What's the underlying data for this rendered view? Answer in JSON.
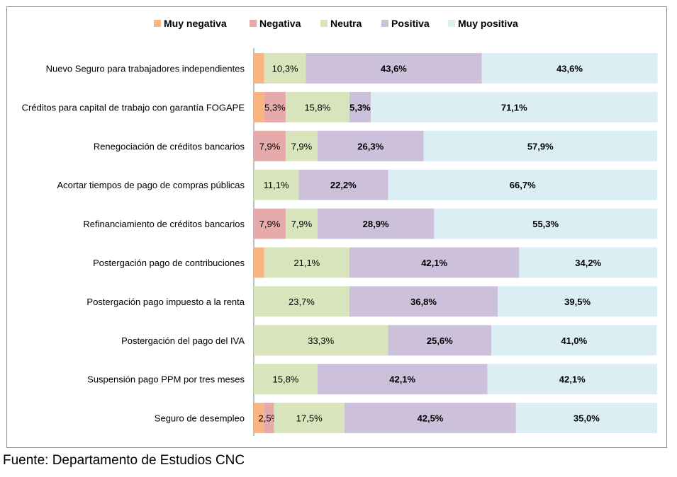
{
  "chart_data": {
    "type": "bar",
    "orientation": "horizontal",
    "stacked": true,
    "percent_stacked": true,
    "title": "",
    "xlabel": "",
    "ylabel": "",
    "legend_position": "top",
    "grid": false,
    "categories": [
      "Nuevo Seguro para trabajadores independientes",
      "Créditos para capital de trabajo con garantía FOGAPE",
      "Renegociación de créditos bancarios",
      "Acortar tiempos de pago de compras públicas",
      "Refinanciamiento de créditos bancarios",
      "Postergación pago de contribuciones",
      "Postergación pago impuesto a la renta",
      "Postergación del pago del IVA",
      "Suspensión pago PPM por tres meses",
      "Seguro de desempleo"
    ],
    "series": [
      {
        "name": "Muy negativa",
        "color": "#f9b482",
        "bold": false,
        "values": [
          2.6,
          2.6,
          0,
          0,
          0,
          2.6,
          0,
          0,
          0,
          2.5
        ],
        "labels": [
          "",
          "",
          "",
          "",
          "",
          "",
          "",
          "",
          "",
          ""
        ]
      },
      {
        "name": "Negativa",
        "color": "#e6aaab",
        "bold": false,
        "values": [
          0,
          5.3,
          7.9,
          0,
          7.9,
          0,
          0,
          0,
          0,
          2.5
        ],
        "labels": [
          "",
          "5,3%",
          "7,9%",
          "",
          "7,9%",
          "",
          "",
          "",
          "",
          "2,5%"
        ]
      },
      {
        "name": "Neutra",
        "color": "#d7e4bc",
        "bold": false,
        "values": [
          10.3,
          15.8,
          7.9,
          11.1,
          7.9,
          21.1,
          23.7,
          33.3,
          15.8,
          17.5
        ],
        "labels": [
          "10,3%",
          "15,8%",
          "7,9%",
          "11,1%",
          "7,9%",
          "21,1%",
          "23,7%",
          "33,3%",
          "15,8%",
          "17,5%"
        ]
      },
      {
        "name": "Positiva",
        "color": "#ccc0da",
        "bold": true,
        "values": [
          43.6,
          5.3,
          26.3,
          22.2,
          28.9,
          42.1,
          36.8,
          25.6,
          42.1,
          42.5
        ],
        "labels": [
          "43,6%",
          "5,3%",
          "26,3%",
          "22,2%",
          "28,9%",
          "42,1%",
          "36,8%",
          "25,6%",
          "42,1%",
          "42,5%"
        ]
      },
      {
        "name": "Muy positiva",
        "color": "#daeef3",
        "bold": true,
        "values": [
          43.6,
          71.1,
          57.9,
          66.7,
          55.3,
          34.2,
          39.5,
          41.0,
          42.1,
          35.0
        ],
        "labels": [
          "43,6%",
          "71,1%",
          "57,9%",
          "66,7%",
          "55,3%",
          "34,2%",
          "39,5%",
          "41,0%",
          "42,1%",
          "35,0%"
        ]
      }
    ],
    "xlim": [
      0,
      100
    ]
  },
  "footer": {
    "source": "Fuente: Departamento de Estudios CNC"
  }
}
